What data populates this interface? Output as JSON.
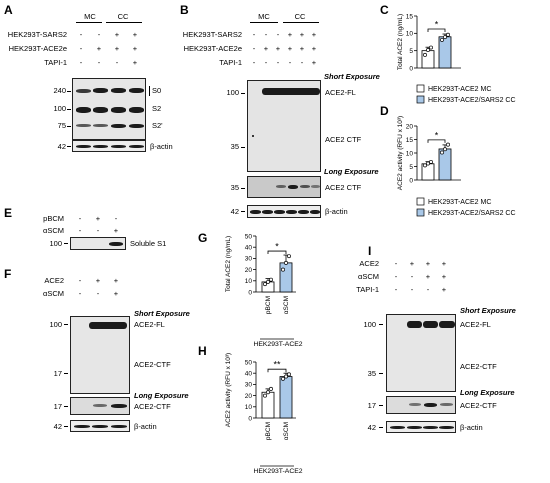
{
  "panels": {
    "A": {
      "letter": "A",
      "group_labels": [
        "MC",
        "CC"
      ],
      "rows": [
        {
          "label": "HEK293T-SARS2",
          "signs": [
            "-",
            "-",
            "+",
            "+"
          ]
        },
        {
          "label": "HEK293T-ACE2e",
          "signs": [
            "-",
            "+",
            "+",
            "+"
          ]
        },
        {
          "label": "TAPI-1",
          "signs": [
            "-",
            "-",
            "-",
            "+"
          ]
        }
      ],
      "mw": [
        "240",
        "100",
        "75",
        "42"
      ],
      "band_labels": [
        "S0",
        "S2",
        "S2'"
      ],
      "actin_label": "β-actin"
    },
    "B": {
      "letter": "B",
      "group_labels": [
        "MC",
        "CC"
      ],
      "rows": [
        {
          "label": "HEK293T-SARS2",
          "signs": [
            "-",
            "-",
            "-",
            "+",
            "+",
            "+"
          ]
        },
        {
          "label": "HEK293T-ACE2e",
          "signs": [
            "-",
            "+",
            "+",
            "+",
            "+",
            "+"
          ]
        },
        {
          "label": "TAPI-1",
          "signs": [
            "-",
            "-",
            "-",
            "-",
            "-",
            "+"
          ]
        }
      ],
      "short_exposure": "Short Exposure",
      "long_exposure": "Long Exposure",
      "mw": [
        "100",
        "35",
        "35",
        "42"
      ],
      "band_labels": [
        "ACE2-FL",
        "ACE2 CTF",
        "ACE2 CTF"
      ],
      "actin_label": "β-actin"
    },
    "C": {
      "letter": "C",
      "chart_data": {
        "type": "bar",
        "categories": [
          "HEK293T-ACE2 MC",
          "HEK293T-ACE2/SARS2 CC"
        ],
        "values": [
          5,
          9
        ],
        "errors": [
          1,
          0.8
        ],
        "points": [
          [
            3.8,
            5.2,
            5.9
          ],
          [
            8.1,
            8.9,
            9.6
          ]
        ],
        "ylabel": "Total ACE2 (ng/mL)",
        "yticks": [
          "0",
          "5",
          "10",
          "15"
        ],
        "ylim": [
          0,
          15
        ],
        "significance": "*"
      },
      "legend": [
        "HEK293T-ACE2 MC",
        "HEK293T-ACE2/SARS2 CC"
      ]
    },
    "D": {
      "letter": "D",
      "chart_data": {
        "type": "bar",
        "categories": [
          "HEK293T-ACE2 MC",
          "HEK293T-ACE2/SARS2 CC"
        ],
        "values": [
          6,
          11.5
        ],
        "errors": [
          0.8,
          1.5
        ],
        "points": [
          [
            5.4,
            6.1,
            6.7
          ],
          [
            10.2,
            11.4,
            13.1
          ]
        ],
        "ylabel": "ACE2 activity (RFU x 10³)",
        "yticks": [
          "0",
          "5",
          "10",
          "15",
          "20"
        ],
        "ylim": [
          0,
          20
        ],
        "significance": "*"
      },
      "legend": [
        "HEK293T-ACE2 MC",
        "HEK293T-ACE2/SARS2 CC"
      ]
    },
    "E": {
      "letter": "E",
      "rows": [
        {
          "label": "pBCM",
          "signs": [
            "-",
            "+",
            "-"
          ]
        },
        {
          "label": "αSCM",
          "signs": [
            "-",
            "-",
            "+"
          ]
        }
      ],
      "mw": [
        "100"
      ],
      "band_labels": [
        "Soluble S1"
      ]
    },
    "F": {
      "letter": "F",
      "rows": [
        {
          "label": "ACE2",
          "signs": [
            "-",
            "+",
            "+"
          ]
        },
        {
          "label": "αSCM",
          "signs": [
            "-",
            "-",
            "+"
          ]
        }
      ],
      "short_exposure": "Short Exposure",
      "long_exposure": "Long Exposure",
      "mw": [
        "100",
        "17",
        "17",
        "42"
      ],
      "band_labels": [
        "ACE2-FL",
        "ACE2-CTF",
        "ACE2-CTF"
      ],
      "actin_label": "β-actin"
    },
    "G": {
      "letter": "G",
      "chart_data": {
        "type": "bar",
        "categories": [
          "pBCM",
          "αSCM"
        ],
        "values": [
          9,
          26
        ],
        "errors": [
          3,
          7
        ],
        "points": [
          [
            7,
            9,
            11
          ],
          [
            20,
            26,
            32
          ]
        ],
        "ylabel": "Total ACE2 (ng/mL)",
        "yticks": [
          "0",
          "10",
          "20",
          "30",
          "40",
          "50"
        ],
        "ylim": [
          0,
          50
        ],
        "significance": "*",
        "group_label": "HEK293T-ACE2"
      }
    },
    "H": {
      "letter": "H",
      "chart_data": {
        "type": "bar",
        "categories": [
          "pBCM",
          "αSCM"
        ],
        "values": [
          23,
          37
        ],
        "errors": [
          3,
          3
        ],
        "points": [
          [
            20,
            23,
            26
          ],
          [
            35,
            37,
            39
          ]
        ],
        "ylabel": "ACE2 activity (RFU x 10³)",
        "yticks": [
          "0",
          "10",
          "20",
          "30",
          "40",
          "50"
        ],
        "ylim": [
          0,
          50
        ],
        "significance": "**",
        "group_label": "HEK293T-ACE2"
      }
    },
    "I": {
      "letter": "I",
      "rows": [
        {
          "label": "ACE2",
          "signs": [
            "-",
            "+",
            "+",
            "+"
          ]
        },
        {
          "label": "αSCM",
          "signs": [
            "-",
            "-",
            "+",
            "+"
          ]
        },
        {
          "label": "TAPI-1",
          "signs": [
            "-",
            "-",
            "-",
            "+"
          ]
        }
      ],
      "short_exposure": "Short Exposure",
      "long_exposure": "Long Exposure",
      "mw": [
        "100",
        "35",
        "17",
        "42"
      ],
      "band_labels": [
        "ACE2-FL",
        "ACE2-CTF",
        "ACE2-CTF"
      ],
      "actin_label": "β-actin"
    }
  },
  "colors": {
    "bar_mc": "#ffffff",
    "bar_cc": "#a9c8e8",
    "blot_bg": "#e8e8e8",
    "band": "#1b1b1b"
  }
}
